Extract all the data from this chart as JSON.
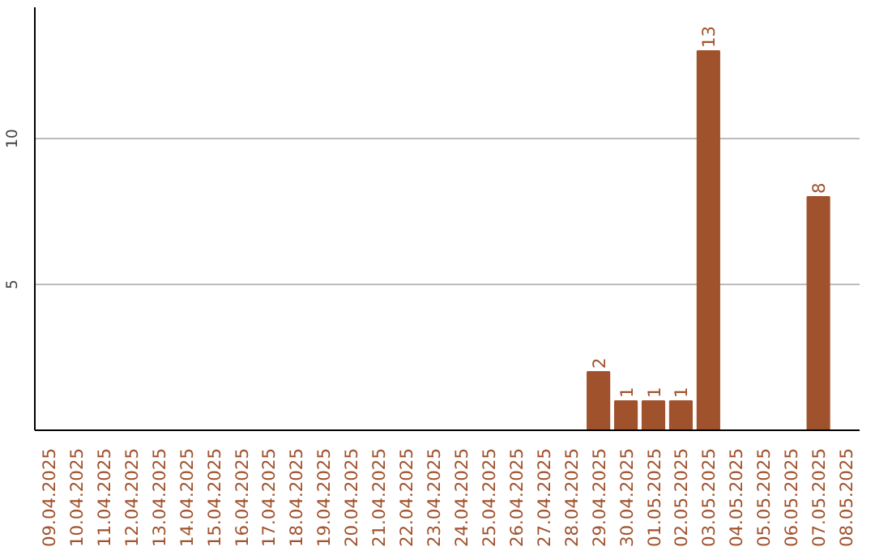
{
  "chart_data": {
    "type": "bar",
    "categories": [
      "09.04.2025",
      "10.04.2025",
      "11.04.2025",
      "12.04.2025",
      "13.04.2025",
      "14.04.2025",
      "15.04.2025",
      "16.04.2025",
      "17.04.2025",
      "18.04.2025",
      "19.04.2025",
      "20.04.2025",
      "21.04.2025",
      "22.04.2025",
      "23.04.2025",
      "24.04.2025",
      "25.04.2025",
      "26.04.2025",
      "27.04.2025",
      "28.04.2025",
      "29.04.2025",
      "30.04.2025",
      "01.05.2025",
      "02.05.2025",
      "03.05.2025",
      "04.05.2025",
      "05.05.2025",
      "06.05.2025",
      "07.05.2025",
      "08.05.2025"
    ],
    "values": [
      0,
      0,
      0,
      0,
      0,
      0,
      0,
      0,
      0,
      0,
      0,
      0,
      0,
      0,
      0,
      0,
      0,
      0,
      0,
      0,
      2,
      1,
      1,
      1,
      13,
      0,
      0,
      0,
      8,
      0
    ],
    "value_labels": [
      null,
      null,
      null,
      null,
      null,
      null,
      null,
      null,
      null,
      null,
      null,
      null,
      null,
      null,
      null,
      null,
      null,
      null,
      null,
      null,
      "2",
      "1",
      "1",
      "1",
      "13",
      null,
      null,
      null,
      "8",
      null
    ],
    "color": "#a0522d",
    "ylim": [
      0,
      14.5
    ],
    "yticks": [
      5,
      10
    ],
    "grid": "y"
  }
}
